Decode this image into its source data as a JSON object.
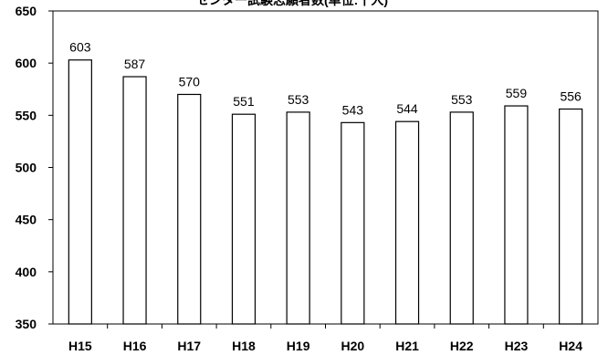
{
  "chart_data": {
    "type": "bar",
    "title": "センター試験志願者数(単位:千人)",
    "xlabel": "",
    "ylabel": "",
    "categories": [
      "H15",
      "H16",
      "H17",
      "H18",
      "H19",
      "H20",
      "H21",
      "H22",
      "H23",
      "H24"
    ],
    "values": [
      603,
      587,
      570,
      551,
      553,
      543,
      544,
      553,
      559,
      556
    ],
    "ylim": [
      350,
      650
    ],
    "yticks": [
      "350",
      "400",
      "450",
      "500",
      "550",
      "600",
      "650"
    ],
    "grid": false,
    "legend": "none",
    "bar_fill": "#ffffff",
    "bar_stroke": "#000000"
  }
}
